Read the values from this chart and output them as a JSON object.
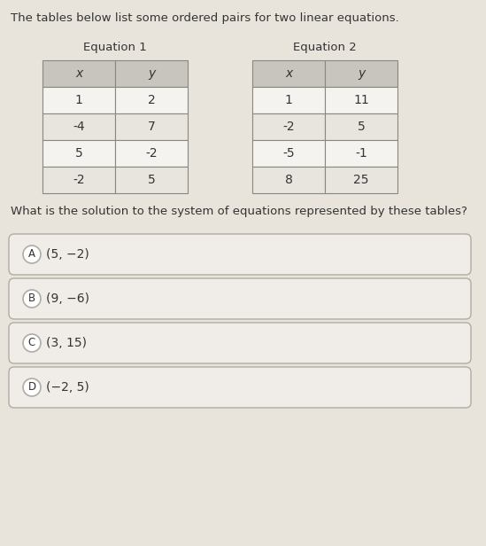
{
  "title_text": "The tables below list some ordered pairs for two linear equations.",
  "eq1_title": "Equation 1",
  "eq2_title": "Equation 2",
  "eq1_headers": [
    "x",
    "y"
  ],
  "eq1_rows": [
    [
      "1",
      "2"
    ],
    [
      "-4",
      "7"
    ],
    [
      "5",
      "-2"
    ],
    [
      "-2",
      "5"
    ]
  ],
  "eq2_headers": [
    "x",
    "y"
  ],
  "eq2_rows": [
    [
      "1",
      "11"
    ],
    [
      "-2",
      "5"
    ],
    [
      "-5",
      "-1"
    ],
    [
      "8",
      "25"
    ]
  ],
  "question_text": "What is the solution to the system of equations represented by these tables?",
  "choices": [
    {
      "letter": "A",
      "text": "(5, −2)"
    },
    {
      "letter": "B",
      "text": "(9, −6)"
    },
    {
      "letter": "C",
      "text": "(3, 15)"
    },
    {
      "letter": "D",
      "text": "(−2, 5)"
    }
  ],
  "bg_color": "#e8e4dc",
  "table_header_bg": "#c8c5be",
  "table_cell_bg_white": "#f5f3ef",
  "table_cell_bg_alt": "#e8e5df",
  "table_border_color": "#8a8680",
  "choice_box_bg": "#f0ede8",
  "choice_box_border": "#b0aca5",
  "text_color": "#333333",
  "title_fontsize": 9.5,
  "question_fontsize": 9.5,
  "table_fontsize": 10,
  "choice_fontsize": 10,
  "circle_letter_fontsize": 8.5
}
